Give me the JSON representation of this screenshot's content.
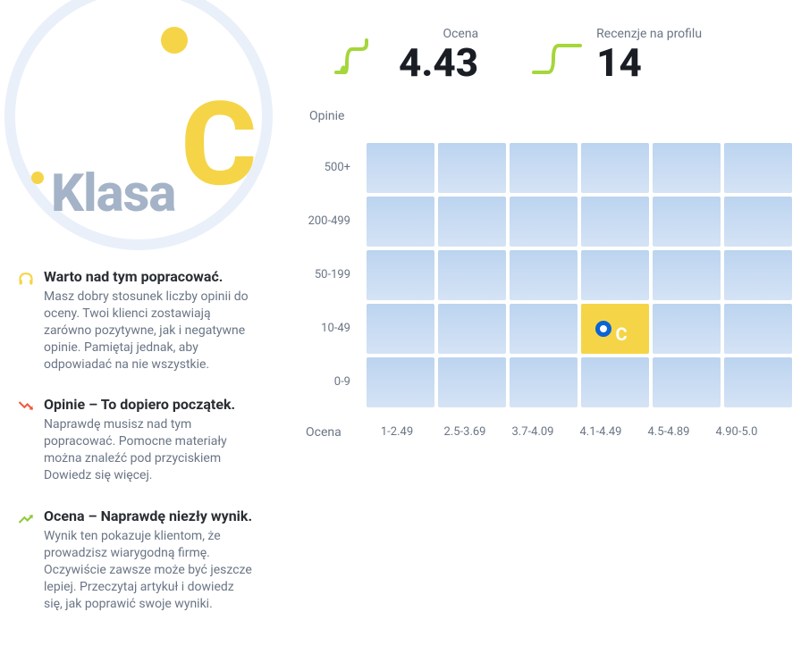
{
  "grade": {
    "word": "Klasa",
    "letter": "C",
    "letter_color": "#f5d547",
    "dot_color": "#f5d547",
    "circle_border_color": "#e9f0fa"
  },
  "tips": [
    {
      "icon": "headphones",
      "icon_color": "#f5d547",
      "title": "Warto nad tym popracować.",
      "text": "Masz dobry stosunek liczby opinii do oceny. Twoi klienci zostawiają zarówno pozytywne, jak i negatywne opinie. Pamiętaj jednak, aby odpowiadać na nie wszystkie."
    },
    {
      "icon": "trend-down",
      "icon_color": "#f05a3c",
      "title": "Opinie – To dopiero początek.",
      "text": "Naprawdę musisz nad tym popracować. Pomocne materiały można znaleźć pod przyciskiem Dowiedz się więcej."
    },
    {
      "icon": "trend-up",
      "icon_color": "#8fc93a",
      "title": "Ocena – Naprawdę niezły wynik.",
      "text": "Wynik ten pokazuje klientom, że prowadzisz wiarygodną firmę. Oczywiście zawsze może być jeszcze lepiej. Przeczytaj artykuł i dowiedz się, jak poprawić swoje wyniki."
    }
  ],
  "stats": {
    "rating": {
      "label": "Ocena",
      "value": "4.43",
      "spark_color": "#a5d63a"
    },
    "reviews": {
      "label": "Recenzje na profilu",
      "value": "14",
      "spark_color": "#a5d63a"
    }
  },
  "heatmap": {
    "y_title": "Opinie",
    "x_title": "Ocena",
    "y_labels": [
      "500+",
      "200-499",
      "50-199",
      "10-49",
      "0-9"
    ],
    "x_labels": [
      "1-2.49",
      "2.5-3.69",
      "3.7-4.09",
      "4.1-4.49",
      "4.5-4.89",
      "4.90-5.0"
    ],
    "cell_gradient_top": "#bcd4f0",
    "cell_gradient_bottom": "#d5e3f5",
    "highlight": {
      "row": 3,
      "col": 3,
      "bg_color": "#f5d547",
      "marker_border": "#0b63d6",
      "letter": "C",
      "letter_color": "#ffffff"
    }
  }
}
